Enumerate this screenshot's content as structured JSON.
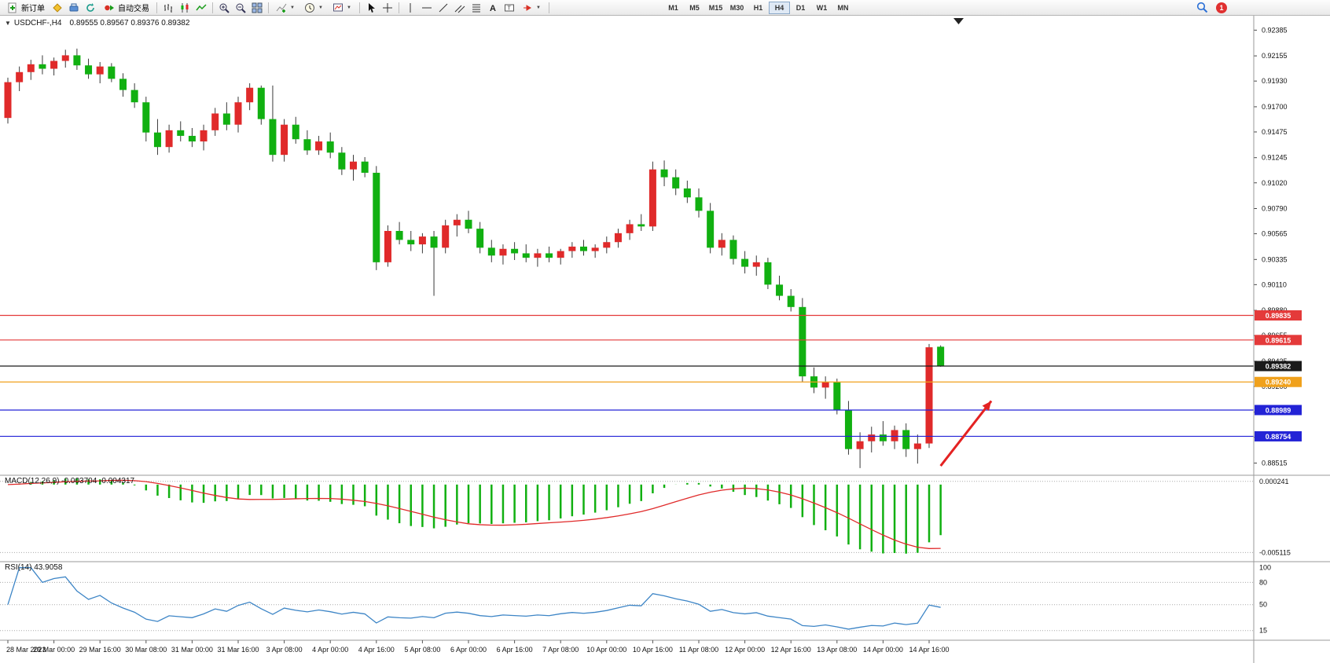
{
  "toolbar": {
    "new_order_label": "新订单",
    "auto_trading_label": "自动交易",
    "icons": [
      "new-order",
      "metaeditor",
      "print",
      "refresh",
      "auto-trading",
      "bar-chart",
      "candlestick-chart",
      "line-chart",
      "zoom-in",
      "zoom-out",
      "tile-windows",
      "indicators",
      "periods",
      "templates",
      "cursor",
      "crosshair",
      "vertical-line",
      "horizontal-line",
      "trendline",
      "equidistant-channel",
      "fibonacci",
      "text",
      "text-label",
      "arrow-shapes",
      "search",
      "notifications"
    ],
    "timeframes": [
      "M1",
      "M5",
      "M15",
      "M30",
      "H1",
      "H4",
      "D1",
      "W1",
      "MN"
    ],
    "active_timeframe": "H4",
    "notification_count": "1"
  },
  "chart": {
    "symbol_period": "USDCHF-,H4",
    "ohlc": "0.89555 0.89567 0.89376 0.89382"
  },
  "chart_data": {
    "type": "candlestick",
    "symbol": "USDCHF-",
    "timeframe": "H4",
    "current_bar": {
      "open": "0.89555",
      "high": "0.89567",
      "low": "0.89376",
      "close": "0.89382"
    },
    "price_axis_labels": [
      "0.92385",
      "0.92155",
      "0.91930",
      "0.91700",
      "0.91475",
      "0.91245",
      "0.91020",
      "0.90790",
      "0.90565",
      "0.90335",
      "0.90110",
      "0.89880",
      "0.89655",
      "0.89425",
      "0.89200",
      "0.88970",
      "0.88745",
      "0.88515"
    ],
    "time_labels": [
      "28 Mar 2023",
      "29 Mar 00:00",
      "29 Mar 16:00",
      "30 Mar 08:00",
      "31 Mar 00:00",
      "31 Mar 16:00",
      "3 Apr 08:00",
      "4 Apr 00:00",
      "4 Apr 16:00",
      "5 Apr 08:00",
      "6 Apr 00:00",
      "6 Apr 16:00",
      "7 Apr 08:00",
      "10 Apr 00:00",
      "10 Apr 16:00",
      "11 Apr 08:00",
      "12 Apr 00:00",
      "12 Apr 16:00",
      "13 Apr 08:00",
      "14 Apr 00:00",
      "14 Apr 16:00"
    ],
    "bars_per_time_label": 4,
    "candles": [
      [
        0.916,
        0.9196,
        0.9155,
        0.9192
      ],
      [
        0.9192,
        0.9206,
        0.9184,
        0.9201
      ],
      [
        0.9201,
        0.9212,
        0.9194,
        0.9208
      ],
      [
        0.9208,
        0.9216,
        0.9199,
        0.9204
      ],
      [
        0.9204,
        0.9214,
        0.9198,
        0.9211
      ],
      [
        0.9211,
        0.9221,
        0.9205,
        0.9216
      ],
      [
        0.9216,
        0.9222,
        0.9203,
        0.9207
      ],
      [
        0.9207,
        0.9213,
        0.9195,
        0.9199
      ],
      [
        0.9199,
        0.921,
        0.9191,
        0.9206
      ],
      [
        0.9206,
        0.9209,
        0.9192,
        0.9195
      ],
      [
        0.9195,
        0.92,
        0.9179,
        0.9185
      ],
      [
        0.9185,
        0.9191,
        0.9169,
        0.9174
      ],
      [
        0.9174,
        0.9179,
        0.9139,
        0.9147
      ],
      [
        0.9147,
        0.9159,
        0.9127,
        0.9134
      ],
      [
        0.9134,
        0.9154,
        0.9129,
        0.9149
      ],
      [
        0.9149,
        0.9157,
        0.9139,
        0.9144
      ],
      [
        0.9144,
        0.9151,
        0.9134,
        0.9139
      ],
      [
        0.9139,
        0.9154,
        0.9131,
        0.9149
      ],
      [
        0.9149,
        0.9169,
        0.9144,
        0.9164
      ],
      [
        0.9164,
        0.9174,
        0.9149,
        0.9154
      ],
      [
        0.9154,
        0.9179,
        0.9147,
        0.9174
      ],
      [
        0.9174,
        0.9191,
        0.9167,
        0.9187
      ],
      [
        0.9187,
        0.9189,
        0.9154,
        0.9159
      ],
      [
        0.9159,
        0.9189,
        0.9121,
        0.9127
      ],
      [
        0.9127,
        0.9159,
        0.9121,
        0.9154
      ],
      [
        0.9154,
        0.9161,
        0.9137,
        0.9141
      ],
      [
        0.9141,
        0.9149,
        0.9127,
        0.9131
      ],
      [
        0.9131,
        0.9144,
        0.9127,
        0.9139
      ],
      [
        0.9139,
        0.9147,
        0.9124,
        0.9129
      ],
      [
        0.9129,
        0.9134,
        0.9109,
        0.9114
      ],
      [
        0.9114,
        0.9127,
        0.9104,
        0.9121
      ],
      [
        0.9121,
        0.9125,
        0.9107,
        0.9111
      ],
      [
        0.9111,
        0.9117,
        0.9024,
        0.9031
      ],
      [
        0.9031,
        0.9064,
        0.9027,
        0.9059
      ],
      [
        0.9059,
        0.9067,
        0.9047,
        0.9051
      ],
      [
        0.9051,
        0.9059,
        0.9041,
        0.9047
      ],
      [
        0.9047,
        0.9057,
        0.9039,
        0.9054
      ],
      [
        0.9054,
        0.9059,
        0.9001,
        0.9044
      ],
      [
        0.9044,
        0.9069,
        0.9039,
        0.9064
      ],
      [
        0.9064,
        0.9074,
        0.9054,
        0.9069
      ],
      [
        0.9069,
        0.9077,
        0.9057,
        0.9061
      ],
      [
        0.9061,
        0.9067,
        0.9039,
        0.9044
      ],
      [
        0.9044,
        0.9051,
        0.9031,
        0.9037
      ],
      [
        0.9037,
        0.9047,
        0.9029,
        0.9043
      ],
      [
        0.9043,
        0.9049,
        0.9033,
        0.9039
      ],
      [
        0.9039,
        0.9047,
        0.9031,
        0.9035
      ],
      [
        0.9035,
        0.9043,
        0.9027,
        0.9039
      ],
      [
        0.9039,
        0.9045,
        0.9031,
        0.9035
      ],
      [
        0.9035,
        0.9043,
        0.9029,
        0.9041
      ],
      [
        0.9041,
        0.9049,
        0.9035,
        0.9045
      ],
      [
        0.9045,
        0.9051,
        0.9037,
        0.9041
      ],
      [
        0.9041,
        0.9047,
        0.9035,
        0.9044
      ],
      [
        0.9044,
        0.9054,
        0.9039,
        0.9049
      ],
      [
        0.9049,
        0.9061,
        0.9044,
        0.9057
      ],
      [
        0.9057,
        0.9069,
        0.9051,
        0.9065
      ],
      [
        0.9065,
        0.9074,
        0.9059,
        0.9063
      ],
      [
        0.9063,
        0.9121,
        0.9059,
        0.9114
      ],
      [
        0.9114,
        0.9122,
        0.9099,
        0.9107
      ],
      [
        0.9107,
        0.9114,
        0.9091,
        0.9097
      ],
      [
        0.9097,
        0.9104,
        0.9084,
        0.9089
      ],
      [
        0.9089,
        0.9097,
        0.9071,
        0.9077
      ],
      [
        0.9077,
        0.9084,
        0.9039,
        0.9044
      ],
      [
        0.9044,
        0.9057,
        0.9037,
        0.9051
      ],
      [
        0.9051,
        0.9055,
        0.9029,
        0.9034
      ],
      [
        0.9034,
        0.9041,
        0.9021,
        0.9027
      ],
      [
        0.9027,
        0.9037,
        0.9019,
        0.9031
      ],
      [
        0.9031,
        0.9035,
        0.9007,
        0.9011
      ],
      [
        0.9011,
        0.9019,
        0.8997,
        0.9001
      ],
      [
        0.9001,
        0.9007,
        0.8987,
        0.8991
      ],
      [
        0.8991,
        0.8999,
        0.8924,
        0.8929
      ],
      [
        0.8929,
        0.8937,
        0.8914,
        0.8919
      ],
      [
        0.8919,
        0.8929,
        0.8909,
        0.8924
      ],
      [
        0.8924,
        0.8927,
        0.8895,
        0.8899
      ],
      [
        0.8899,
        0.8907,
        0.8859,
        0.8864
      ],
      [
        0.8864,
        0.8879,
        0.8847,
        0.8871
      ],
      [
        0.8871,
        0.8884,
        0.8861,
        0.8877
      ],
      [
        0.8877,
        0.8889,
        0.8867,
        0.8871
      ],
      [
        0.8871,
        0.8885,
        0.8864,
        0.8881
      ],
      [
        0.8881,
        0.8887,
        0.8857,
        0.8864
      ],
      [
        0.8864,
        0.8877,
        0.8851,
        0.8869
      ],
      [
        0.8869,
        0.8958,
        0.8865,
        0.8955
      ],
      [
        0.89555,
        0.89567,
        0.89376,
        0.89382
      ]
    ],
    "hlines": [
      {
        "price": "0.89835",
        "value": 0.89835,
        "color": "#e43a3a",
        "name": "resistance-line-1"
      },
      {
        "price": "0.89615",
        "value": 0.89615,
        "color": "#e43a3a",
        "name": "resistance-line-2"
      },
      {
        "price": "0.89382",
        "value": 0.89382,
        "color": "#1a1a1a",
        "name": "current-price-line"
      },
      {
        "price": "0.89240",
        "value": 0.8924,
        "color": "#f0a11c",
        "name": "pivot-line"
      },
      {
        "price": "0.88989",
        "value": 0.88989,
        "color": "#2323d6",
        "name": "support-line-1"
      },
      {
        "price": "0.88754",
        "value": 0.88754,
        "color": "#2323d6",
        "name": "support-line-2"
      }
    ],
    "macd": {
      "name": "MACD(12,26,9)",
      "main_value": "-0.003704",
      "signal_value": "-0.004317",
      "params": {
        "fast": 12,
        "slow": 26,
        "signal": 9
      },
      "axis_labels": [
        "0.000241",
        "-0.005115"
      ],
      "axis_values": [
        0.000241,
        -0.005115
      ]
    },
    "rsi": {
      "name": "RSI(14)",
      "value": "43.9058",
      "period": 14,
      "axis_labels": [
        "100",
        "80",
        "50",
        "15"
      ],
      "levels": [
        80,
        50,
        15
      ]
    },
    "arrow": {
      "from": {
        "bar": 81,
        "price": 0.8849
      },
      "to": {
        "bar": 85.4,
        "price": 0.8907
      },
      "color": "#e42222"
    },
    "colors": {
      "bull": "#e02a2a",
      "bear": "#11b011",
      "wick": "#3a3a3a",
      "macd_hist": "#11b011",
      "macd_signal": "#e02a2a",
      "rsi_line": "#3d85c6",
      "line_red": "#e43a3a",
      "line_blue": "#2323d6",
      "line_orange": "#f0a11c",
      "current_price": "#1a1a1a",
      "background": "#ffffff",
      "separator": "#9a9a9a"
    }
  }
}
